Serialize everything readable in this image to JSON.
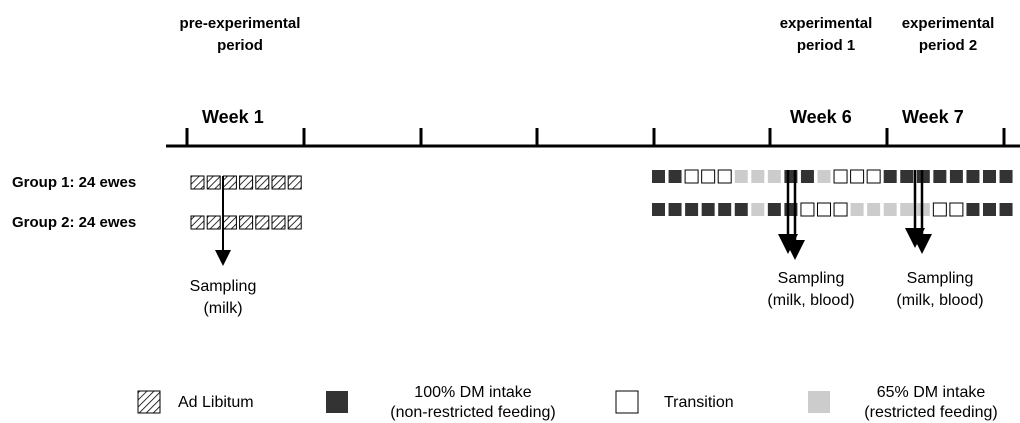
{
  "periods": {
    "pre": [
      "pre-experimental",
      "period"
    ],
    "exp1": [
      "experimental",
      "period 1"
    ],
    "exp2": [
      "experimental",
      "period 2"
    ]
  },
  "weeks": [
    "Week 1",
    "Week 6",
    "Week 7"
  ],
  "groups": [
    "Group 1: 24 ewes",
    "Group 2: 24 ewes"
  ],
  "sampling": {
    "milk": [
      "Sampling",
      "(milk)"
    ],
    "milk_blood": [
      "Sampling",
      "(milk, blood)"
    ]
  },
  "legend": {
    "ad_libitum": "Ad Libitum",
    "full_intake": [
      "100% DM intake",
      "(non-restricted feeding)"
    ],
    "transition": "Transition",
    "restricted": [
      "65% DM intake",
      "(restricted feeding)"
    ]
  },
  "feeding_sequence": {
    "week1_days": 7,
    "group1": [
      "F",
      "F",
      "T",
      "T",
      "T",
      "R",
      "R",
      "R",
      "F",
      "F",
      "R",
      "T",
      "T",
      "T",
      "F",
      "F",
      "F",
      "F",
      "F",
      "F",
      "F",
      "F"
    ],
    "group2": [
      "F",
      "F",
      "F",
      "F",
      "F",
      "F",
      "R",
      "F",
      "F",
      "T",
      "T",
      "T",
      "R",
      "R",
      "R",
      "R",
      "R",
      "T",
      "T",
      "F",
      "F",
      "F"
    ]
  },
  "colors": {
    "full": "#333333",
    "restricted": "#cccccc",
    "transition": "#ffffff",
    "line": "#000000"
  }
}
